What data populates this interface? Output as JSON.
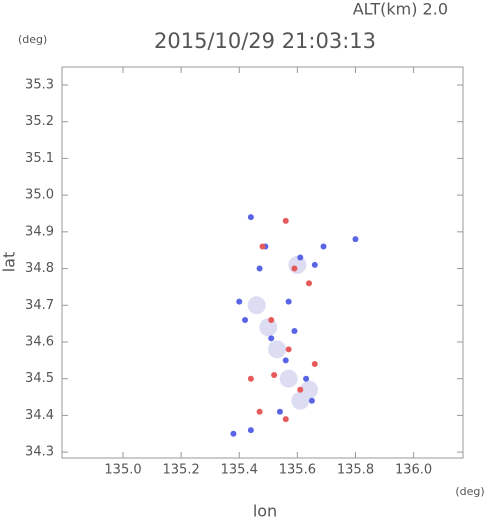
{
  "chart_data": {
    "type": "scatter",
    "annotation": "ALT(km) 2.0",
    "title": "2015/10/29 21:03:13",
    "y_label": "lat",
    "y_unit": "(deg)",
    "x_label": "lon",
    "x_unit": "(deg)",
    "xlim": [
      134.79,
      136.17
    ],
    "ylim": [
      34.284,
      35.349
    ],
    "xticks": [
      {
        "value": 135,
        "label": "135.0"
      },
      135.2,
      135.4,
      135.6,
      135.8,
      {
        "value": 136,
        "label": "136.0"
      }
    ],
    "yticks": [
      34.3,
      34.4,
      34.5,
      34.6,
      34.7,
      34.8,
      34.9,
      {
        "value": 35,
        "label": "35.0"
      },
      35.1,
      35.2,
      35.3
    ],
    "series": [
      {
        "color": "#dcdcf2",
        "x": [
          135.5,
          135.57,
          135.61,
          135.46,
          135.6,
          135.53,
          135.64
        ],
        "y": [
          34.64,
          34.5,
          34.44,
          34.7,
          34.81,
          34.58,
          34.47
        ]
      },
      {
        "color": "#5a64e6",
        "x": [
          135.44,
          135.49,
          135.61,
          135.69,
          135.8,
          135.47,
          135.4,
          135.57,
          135.42,
          135.51,
          135.59,
          135.56,
          135.63,
          135.65,
          135.54,
          135.44,
          135.38,
          135.66
        ],
        "y": [
          34.94,
          34.86,
          34.83,
          34.86,
          34.88,
          34.8,
          34.71,
          34.71,
          34.66,
          34.61,
          34.63,
          34.55,
          34.5,
          34.44,
          34.41,
          34.36,
          34.35,
          34.81
        ]
      },
      {
        "color": "#e65a5a",
        "x": [
          135.56,
          135.48,
          135.59,
          135.51,
          135.57,
          135.52,
          135.61,
          135.56,
          135.47,
          135.44,
          135.66,
          135.64
        ],
        "y": [
          34.93,
          34.86,
          34.8,
          34.66,
          34.58,
          34.51,
          34.47,
          34.39,
          34.41,
          34.5,
          34.54,
          34.76
        ]
      }
    ]
  }
}
